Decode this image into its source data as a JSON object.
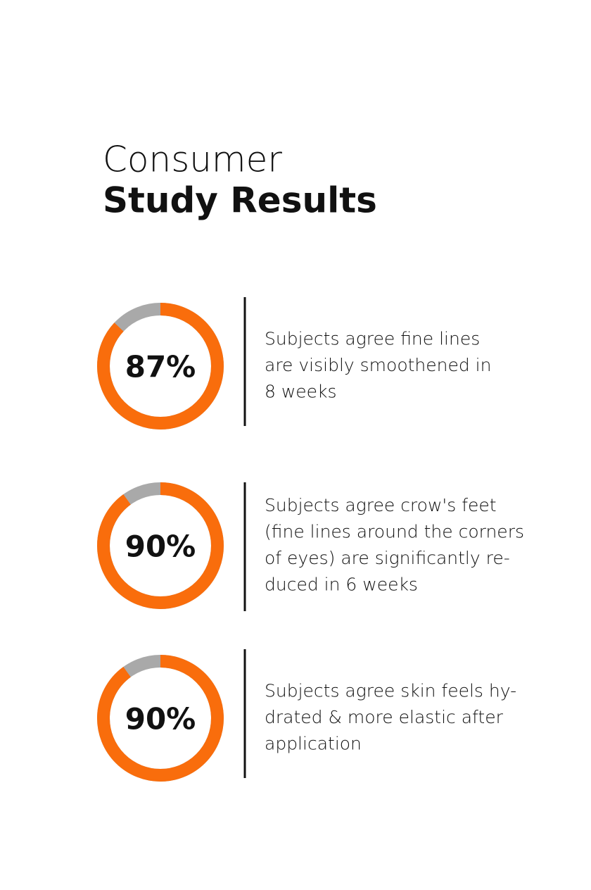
{
  "title": {
    "line1": "Consumer",
    "line2": "Study Results"
  },
  "items": [
    {
      "value": 87,
      "value_label": "87%",
      "lines": [
        "Subjects agree fine lines",
        "are visibly smoothened in",
        "8 weeks"
      ]
    },
    {
      "value": 90,
      "value_label": "90%",
      "lines": [
        "Subjects agree crow's feet",
        "(fine lines around the corners",
        "of eyes) are significantly re-",
        "duced in 6 weeks"
      ]
    },
    {
      "value": 90,
      "value_label": "90%",
      "lines": [
        "Subjects agree skin feels hy-",
        "drated & more elastic after",
        "application"
      ]
    }
  ]
}
